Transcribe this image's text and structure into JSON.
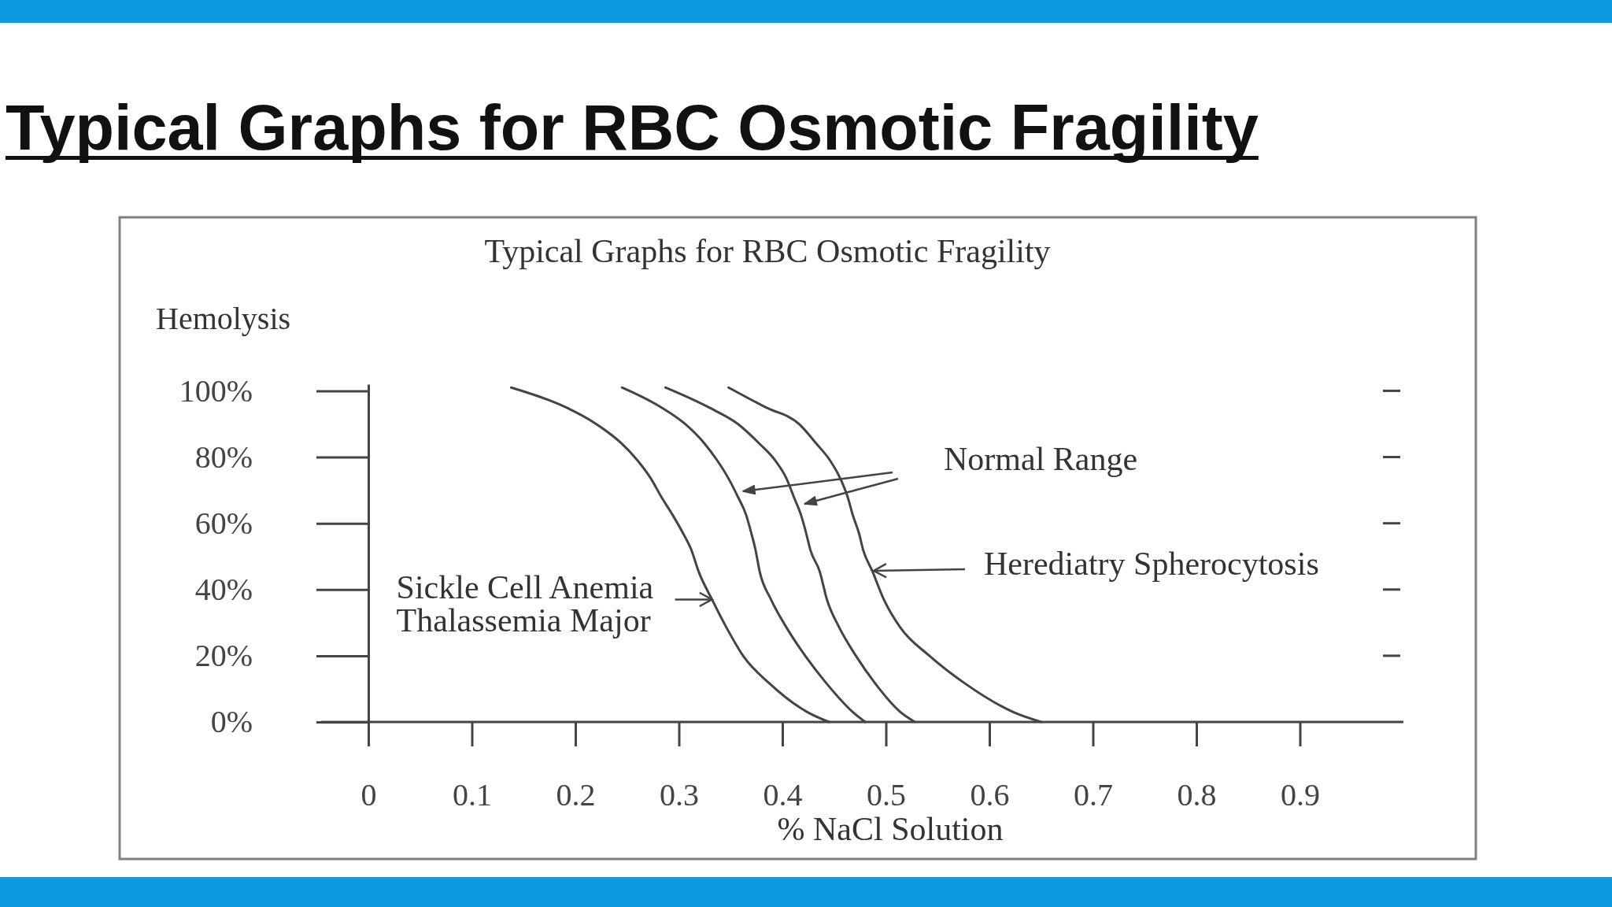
{
  "chart_data": {
    "type": "line",
    "title": "Typical Graphs for RBC Osmotic Fragility",
    "subtitle": "Typical Graphs for RBC Osmotic Fragility",
    "xlabel": "% NaCl Solution",
    "ylabel": "Hemolysis",
    "xlim": [
      0,
      1.0
    ],
    "xticks": [
      0,
      0.1,
      0.2,
      0.3,
      0.4,
      0.5,
      0.6,
      0.7,
      0.8,
      0.9
    ],
    "ylim": [
      0,
      102
    ],
    "yticks": [
      {
        "value": 0,
        "label": "0%"
      },
      {
        "value": 20,
        "label": "20%"
      },
      {
        "value": 40,
        "label": "40%"
      },
      {
        "value": 60,
        "label": "60%"
      },
      {
        "value": 80,
        "label": "80%"
      },
      {
        "value": 100,
        "label": "100%"
      }
    ],
    "annotations": [
      {
        "text": "Sickle Cell Anemia\nThalassemia Major",
        "x": 0.332,
        "y": 37
      },
      "Normal Range",
      "Herediatry Spherocytosis"
    ],
    "series": [
      {
        "color": "#444444",
        "x": [
          0.138,
          0.191,
          0.22,
          0.245,
          0.26,
          0.273,
          0.283,
          0.294,
          0.304,
          0.312,
          0.319,
          0.332,
          0.346,
          0.362,
          0.388,
          0.424,
          0.445
        ],
        "values": [
          101,
          95,
          90,
          84,
          79,
          73.5,
          68,
          62.5,
          57,
          52,
          45.5,
          37,
          28.5,
          20,
          11.5,
          3,
          0
        ]
      },
      {
        "color": "#444444",
        "x": [
          0.245,
          0.283,
          0.306,
          0.325,
          0.337,
          0.348,
          0.357,
          0.365,
          0.37,
          0.374,
          0.378,
          0.389,
          0.404,
          0.422,
          0.443,
          0.468,
          0.48
        ],
        "values": [
          101,
          95,
          90,
          84,
          79,
          73.5,
          68,
          62.5,
          57,
          52,
          45.5,
          37,
          28.5,
          20,
          11.5,
          3,
          0
        ]
      },
      {
        "color": "#444444",
        "x": [
          0.287,
          0.329,
          0.357,
          0.378,
          0.393,
          0.404,
          0.411,
          0.418,
          0.423,
          0.427,
          0.436,
          0.443,
          0.455,
          0.471,
          0.49,
          0.514,
          0.528
        ],
        "values": [
          101,
          95,
          90,
          84,
          79,
          73.5,
          68,
          62.5,
          57,
          52,
          45.5,
          37,
          28.5,
          20,
          11.5,
          3,
          0
        ]
      },
      {
        "color": "#444444",
        "x": [
          0.348,
          0.384,
          0.416,
          0.433,
          0.446,
          0.456,
          0.463,
          0.468,
          0.474,
          0.478,
          0.487,
          0.498,
          0.514,
          0.542,
          0.577,
          0.623,
          0.65
        ],
        "values": [
          101,
          95,
          90,
          84,
          79,
          73.5,
          68,
          62.5,
          57,
          52,
          45.5,
          37,
          28.5,
          20,
          11.5,
          3,
          0
        ]
      }
    ]
  }
}
